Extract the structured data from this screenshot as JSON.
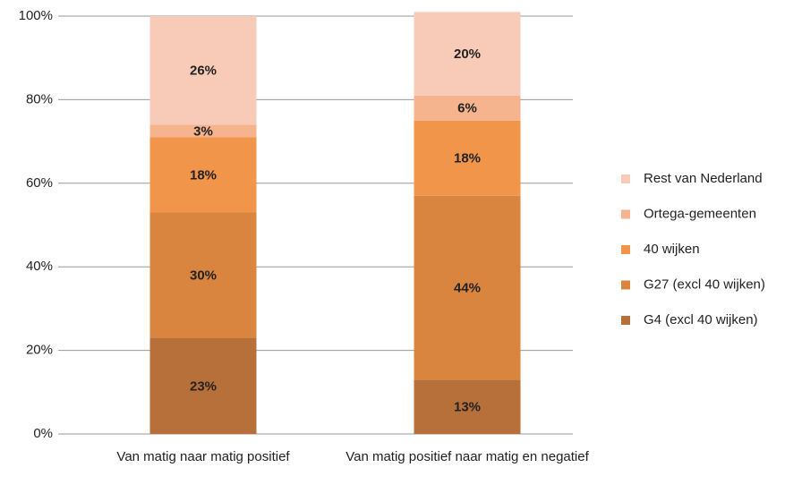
{
  "chart_data": {
    "type": "stacked_bar",
    "categories": [
      "Van matig naar matig positief",
      "Van matig positief naar matig en negatief"
    ],
    "series": [
      {
        "name": "G4 (excl 40 wijken)",
        "color": "#b8703a",
        "values": [
          23,
          13
        ],
        "value_labels": [
          "23%",
          "13%"
        ]
      },
      {
        "name": "G27 (excl 40 wijken)",
        "color": "#d9853f",
        "values": [
          30,
          44
        ],
        "value_labels": [
          "30%",
          "44%"
        ]
      },
      {
        "name": "40 wijken",
        "color": "#f0954a",
        "values": [
          18,
          18
        ],
        "value_labels": [
          "18%",
          "18%"
        ]
      },
      {
        "name": "Ortega-gemeenten",
        "color": "#f5b38e",
        "values": [
          3,
          6
        ],
        "value_labels": [
          "3%",
          "6%"
        ]
      },
      {
        "name": "Rest van Nederland",
        "color": "#f8cbb8",
        "values": [
          26,
          20
        ],
        "value_labels": [
          "26%",
          "20%"
        ]
      }
    ],
    "ylim": [
      0,
      100
    ],
    "yticks": [
      {
        "value": 0,
        "label": "0%"
      },
      {
        "value": 20,
        "label": "20%"
      },
      {
        "value": 40,
        "label": "40%"
      },
      {
        "value": 60,
        "label": "60%"
      },
      {
        "value": 80,
        "label": "80%"
      },
      {
        "value": 100,
        "label": "100%"
      }
    ],
    "grid": true,
    "legend": "right"
  }
}
